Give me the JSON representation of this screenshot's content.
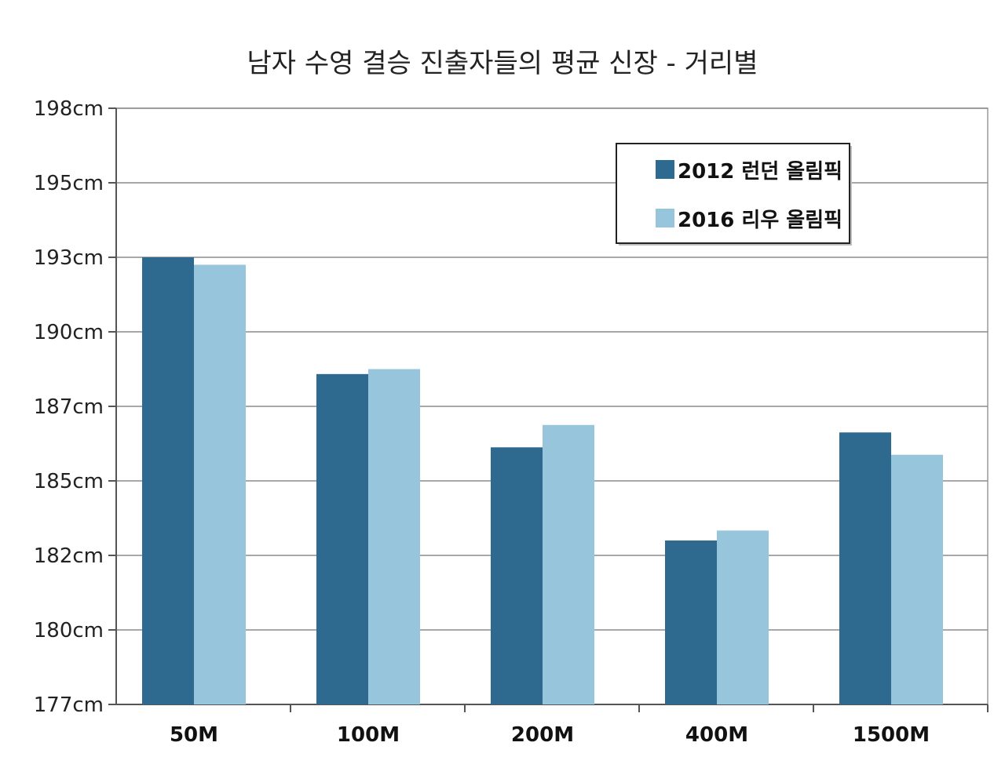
{
  "chart_data": {
    "type": "bar",
    "title": "남자 수영 결승 진출자들의 평균 신장 - 거리별",
    "xlabel": "",
    "ylabel": "",
    "categories": [
      "50M",
      "100M",
      "200M",
      "400M",
      "1500M"
    ],
    "series": [
      {
        "name": "2012 런던 올림픽",
        "color": "#2e6a8f",
        "values": [
          193.0,
          188.3,
          185.9,
          182.6,
          186.3
        ]
      },
      {
        "name": "2016 리우 올림픽",
        "color": "#97c5db",
        "values": [
          192.7,
          188.5,
          186.5,
          183.0,
          185.7
        ]
      }
    ],
    "ylim": [
      177,
      198
    ],
    "yticks": [
      {
        "value": 177,
        "label": "177cm"
      },
      {
        "value": 180,
        "label": "180cm"
      },
      {
        "value": 182,
        "label": "182cm"
      },
      {
        "value": 185,
        "label": "185cm"
      },
      {
        "value": 187,
        "label": "187cm"
      },
      {
        "value": 190,
        "label": "190cm"
      },
      {
        "value": 193,
        "label": "193cm"
      },
      {
        "value": 195,
        "label": "195cm"
      },
      {
        "value": 198,
        "label": "198cm"
      }
    ],
    "grid": true,
    "legend_position": "top-right"
  }
}
